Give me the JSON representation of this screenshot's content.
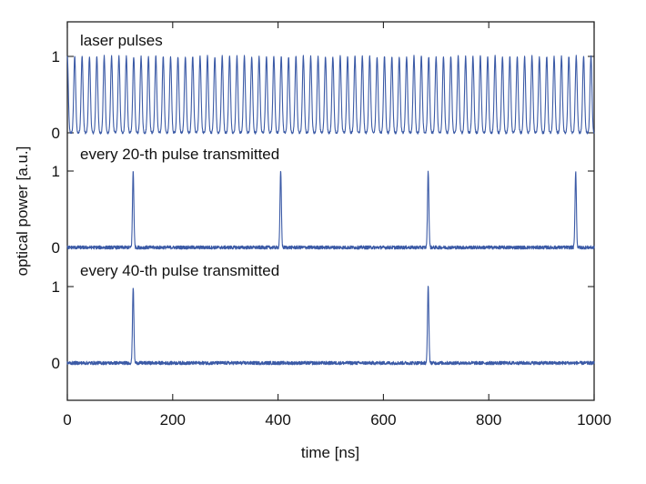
{
  "chart_data": {
    "type": "line",
    "xlabel": "time [ns]",
    "ylabel": "optical power [a.u.]",
    "xlim": [
      0,
      1000
    ],
    "x_ticks": [
      "0",
      "200",
      "400",
      "600",
      "800",
      "1000"
    ],
    "y_ticks": [
      "0",
      "1"
    ],
    "grid": false,
    "line_color": "#3b5aa6",
    "panels": [
      {
        "label": "laser pulses",
        "pulse_period_ns": 14,
        "pulse_width_ns": 4,
        "pulse_peak": 1,
        "baseline": 0
      },
      {
        "label": "every 20-th pulse transmitted",
        "pulse_times_ns": [
          125,
          405,
          685,
          965
        ],
        "pulse_peak": 1,
        "baseline": 0
      },
      {
        "label": "every 40-th pulse transmitted",
        "pulse_times_ns": [
          125,
          685
        ],
        "pulse_peak": 1,
        "baseline": 0
      }
    ]
  }
}
